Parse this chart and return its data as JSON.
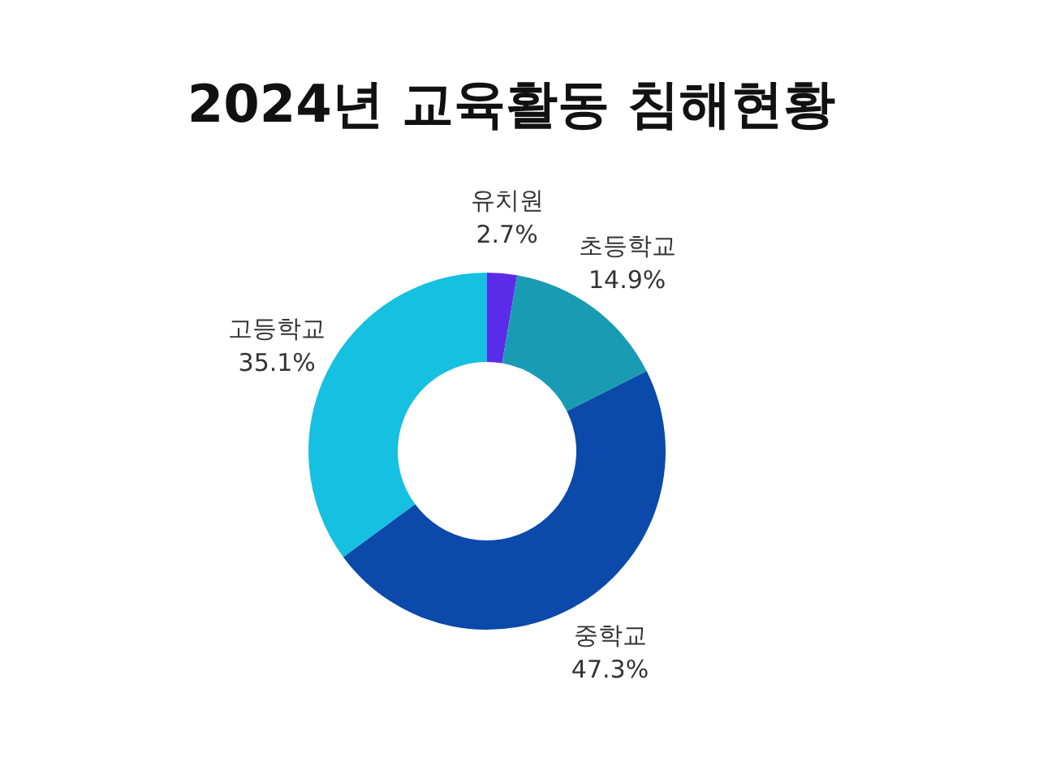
{
  "chart_data": {
    "type": "donut",
    "title": "2024년 교육활동 침해현황",
    "categories": [
      "유치원",
      "초등학교",
      "중학교",
      "고등학교"
    ],
    "values": [
      2.7,
      14.9,
      47.3,
      35.1
    ],
    "colors": [
      "#5b2bea",
      "#1a9bb4",
      "#0b4aab",
      "#15c0e0"
    ],
    "value_labels": [
      "2.7%",
      "14.9%",
      "47.3%",
      "35.1%"
    ]
  }
}
